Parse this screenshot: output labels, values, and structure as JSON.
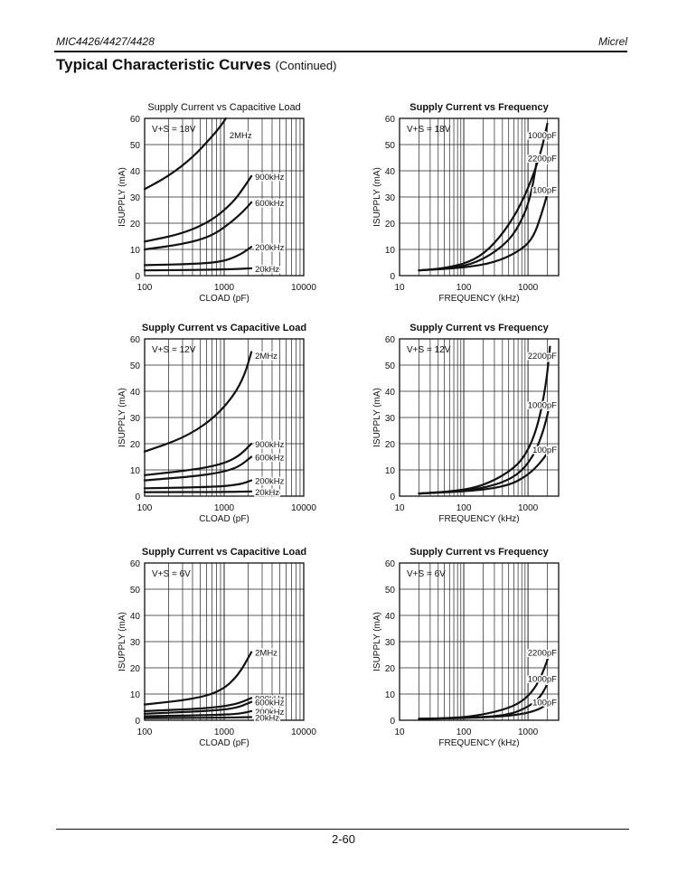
{
  "header": {
    "left": "MIC4426/4427/4428",
    "right": "Micrel"
  },
  "section": {
    "title": "Typical Characteristic Curves",
    "subtitle": "(Continued)"
  },
  "footer": {
    "page": "2-60"
  },
  "chart_data": [
    {
      "type": "line",
      "xscale": "log",
      "bold_title": false,
      "title": "Supply Current vs Capacitive Load",
      "xlabel": "CLOAD (pF)",
      "ylabel": "ISUPPLY (mA)",
      "xlim": [
        100,
        10000
      ],
      "ylim": [
        0,
        60
      ],
      "xticks": [
        100,
        1000,
        10000
      ],
      "xtick_labels": [
        "100",
        "1000",
        "10000"
      ],
      "yticks": [
        0,
        10,
        20,
        30,
        40,
        50,
        60
      ],
      "ytick_labels": [
        "0",
        "10",
        "20",
        "30",
        "40",
        "50",
        "60"
      ],
      "grid": true,
      "annotation": {
        "vs": "V+S = 18V"
      },
      "series": [
        {
          "name": "2MHz",
          "x": [
            100,
            200,
            400,
            700,
            900,
            1050
          ],
          "y": [
            33,
            38,
            45,
            53,
            57,
            60
          ]
        },
        {
          "name": "900kHz",
          "x": [
            100,
            300,
            700,
            1300,
            1800,
            2200
          ],
          "y": [
            13,
            16,
            21,
            28,
            34,
            38
          ]
        },
        {
          "name": "600kHz",
          "x": [
            100,
            300,
            700,
            1300,
            1800,
            2200
          ],
          "y": [
            10,
            12,
            15,
            21,
            25,
            28
          ]
        },
        {
          "name": "200kHz",
          "x": [
            100,
            500,
            1000,
            1600,
            2200
          ],
          "y": [
            4,
            4.5,
            5.5,
            8,
            11
          ]
        },
        {
          "name": "20kHz",
          "x": [
            100,
            1000,
            2200
          ],
          "y": [
            2,
            2.3,
            2.8
          ]
        }
      ]
    },
    {
      "type": "line",
      "xscale": "log",
      "bold_title": true,
      "title": "Supply Current vs Frequency",
      "xlabel": "FREQUENCY (kHz)",
      "ylabel": "ISUPPLY (mA)",
      "xlim": [
        10,
        3000
      ],
      "ylim": [
        0,
        60
      ],
      "xticks": [
        10,
        100,
        1000
      ],
      "xtick_labels": [
        "10",
        "100",
        "1000"
      ],
      "yticks": [
        0,
        10,
        20,
        30,
        40,
        50,
        60
      ],
      "ytick_labels": [
        "0",
        "10",
        "20",
        "30",
        "40",
        "50",
        "60"
      ],
      "grid": true,
      "annotation": {
        "vs": "V+S = 18V"
      },
      "series": [
        {
          "name": "1000pF",
          "x": [
            20,
            60,
            150,
            300,
            600,
            1000,
            1600,
            2000
          ],
          "y": [
            2,
            3,
            6,
            12,
            22,
            33,
            47,
            58
          ]
        },
        {
          "name": "2200pF",
          "x": [
            20,
            80,
            200,
            500,
            800,
            1100,
            1400
          ],
          "y": [
            2,
            3,
            6,
            13,
            21,
            30,
            45
          ]
        },
        {
          "name": "100pF",
          "x": [
            20,
            100,
            300,
            700,
            1200,
            1700,
            2100
          ],
          "y": [
            2,
            3,
            5,
            9,
            14,
            25,
            33
          ]
        }
      ]
    },
    {
      "type": "line",
      "xscale": "log",
      "bold_title": true,
      "title": "Supply Current vs Capacitive Load",
      "xlabel": "CLOAD (pF)",
      "ylabel": "ISUPPLY (mA)",
      "xlim": [
        100,
        10000
      ],
      "ylim": [
        0,
        60
      ],
      "xticks": [
        100,
        1000,
        10000
      ],
      "xtick_labels": [
        "100",
        "1000",
        "10000"
      ],
      "yticks": [
        0,
        10,
        20,
        30,
        40,
        50,
        60
      ],
      "ytick_labels": [
        "0",
        "10",
        "20",
        "30",
        "40",
        "50",
        "60"
      ],
      "grid": true,
      "annotation": {
        "vs": "V+S = 12V"
      },
      "series": [
        {
          "name": "2MHz",
          "x": [
            100,
            300,
            700,
            1300,
            1800,
            2200
          ],
          "y": [
            17,
            22,
            29,
            38,
            46,
            55
          ]
        },
        {
          "name": "900kHz",
          "x": [
            100,
            400,
            900,
            1500,
            2200
          ],
          "y": [
            8,
            10,
            12,
            15,
            20
          ]
        },
        {
          "name": "600kHz",
          "x": [
            100,
            400,
            900,
            1500,
            2200
          ],
          "y": [
            6,
            7.5,
            9,
            11,
            15
          ]
        },
        {
          "name": "200kHz",
          "x": [
            100,
            800,
            1600,
            2200
          ],
          "y": [
            3,
            3.5,
            4.5,
            6
          ]
        },
        {
          "name": "20kHz",
          "x": [
            100,
            1000,
            2200
          ],
          "y": [
            1.5,
            1.6,
            1.8
          ]
        }
      ]
    },
    {
      "type": "line",
      "xscale": "log",
      "bold_title": true,
      "title": "Supply Current vs Frequency",
      "xlabel": "FREQUENCY (kHz)",
      "ylabel": "ISUPPLY (mA)",
      "xlim": [
        10,
        3000
      ],
      "ylim": [
        0,
        60
      ],
      "xticks": [
        10,
        100,
        1000
      ],
      "xtick_labels": [
        "10",
        "100",
        "1000"
      ],
      "yticks": [
        0,
        10,
        20,
        30,
        40,
        50,
        60
      ],
      "ytick_labels": [
        "0",
        "10",
        "20",
        "30",
        "40",
        "50",
        "60"
      ],
      "grid": true,
      "annotation": {
        "vs": "V+S = 12V"
      },
      "series": [
        {
          "name": "2200pF",
          "x": [
            20,
            80,
            200,
            500,
            900,
            1400,
            1900,
            2200
          ],
          "y": [
            1,
            2,
            4,
            9,
            15,
            26,
            42,
            57
          ]
        },
        {
          "name": "1000pF",
          "x": [
            20,
            100,
            300,
            700,
            1200,
            1700,
            2200
          ],
          "y": [
            1,
            2,
            4,
            8,
            15,
            24,
            35
          ]
        },
        {
          "name": "100pF",
          "x": [
            20,
            150,
            500,
            1000,
            1600,
            2200
          ],
          "y": [
            1,
            2,
            4,
            8,
            13,
            18
          ]
        }
      ]
    },
    {
      "type": "line",
      "xscale": "log",
      "bold_title": true,
      "title": "Supply Current vs Capacitive Load",
      "xlabel": "CLOAD (pF)",
      "ylabel": "ISUPPLY (mA)",
      "xlim": [
        100,
        10000
      ],
      "ylim": [
        0,
        60
      ],
      "xticks": [
        100,
        1000,
        10000
      ],
      "xtick_labels": [
        "100",
        "1000",
        "10000"
      ],
      "yticks": [
        0,
        10,
        20,
        30,
        40,
        50,
        60
      ],
      "ytick_labels": [
        "0",
        "10",
        "20",
        "30",
        "40",
        "50",
        "60"
      ],
      "grid": true,
      "annotation": {
        "vs": "V+S = 6V"
      },
      "series": [
        {
          "name": "2MHz",
          "x": [
            100,
            400,
            900,
            1500,
            2200
          ],
          "y": [
            6,
            8,
            11,
            17,
            26
          ]
        },
        {
          "name": "900kHz",
          "x": [
            100,
            600,
            1400,
            2200
          ],
          "y": [
            3.5,
            4.5,
            6,
            8.5
          ]
        },
        {
          "name": "600kHz",
          "x": [
            100,
            600,
            1400,
            2200
          ],
          "y": [
            2.5,
            3.5,
            4.5,
            7
          ]
        },
        {
          "name": "200kHz",
          "x": [
            100,
            800,
            1600,
            2200
          ],
          "y": [
            1.5,
            2,
            2.5,
            3.5
          ]
        },
        {
          "name": "20kHz",
          "x": [
            100,
            1000,
            2200
          ],
          "y": [
            0.8,
            1,
            1.2
          ]
        }
      ]
    },
    {
      "type": "line",
      "xscale": "log",
      "bold_title": true,
      "title": "Supply Current vs Frequency",
      "xlabel": "FREQUENCY (kHz)",
      "ylabel": "ISUPPLY (mA)",
      "xlim": [
        10,
        3000
      ],
      "ylim": [
        0,
        60
      ],
      "xticks": [
        10,
        100,
        1000
      ],
      "xtick_labels": [
        "10",
        "100",
        "1000"
      ],
      "yticks": [
        0,
        10,
        20,
        30,
        40,
        50,
        60
      ],
      "ytick_labels": [
        "0",
        "10",
        "20",
        "30",
        "40",
        "50",
        "60"
      ],
      "grid": true,
      "annotation": {
        "vs": "V+S = 6V"
      },
      "series": [
        {
          "name": "2200pF",
          "x": [
            20,
            100,
            300,
            700,
            1200,
            1700,
            2200
          ],
          "y": [
            0.5,
            1,
            3,
            6,
            11,
            18,
            26
          ]
        },
        {
          "name": "1000pF",
          "x": [
            20,
            150,
            500,
            1000,
            1600,
            2200
          ],
          "y": [
            0.5,
            1,
            2,
            5,
            9,
            16
          ]
        },
        {
          "name": "100pF",
          "x": [
            20,
            200,
            700,
            1500,
            2200
          ],
          "y": [
            0.5,
            1,
            2,
            4,
            7
          ]
        }
      ]
    }
  ]
}
